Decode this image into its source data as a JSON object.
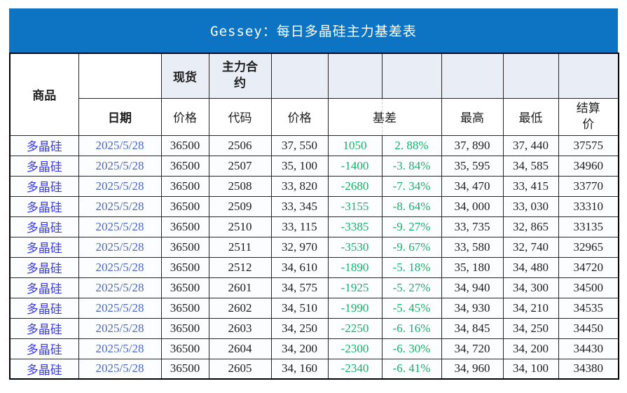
{
  "title": "Gessey：每日多晶硅主力基差表",
  "colors": {
    "title_bar_bg": "#0d74c4",
    "title_text": "#ffffff",
    "header_fill": "#e9edf6",
    "product_text": "#3a3aef",
    "date_text": "#4a68c2",
    "basis_text": "#17b169",
    "body_text": "#1d1d1d",
    "grid_border": "#262626"
  },
  "table": {
    "header": {
      "product": "商品",
      "date": "日期",
      "spot_group": "现货",
      "main_contract_group": "主力合约",
      "spot_price": "价格",
      "code": "代码",
      "price": "价格",
      "basis": "基差",
      "high": "最高",
      "low": "最低",
      "settle": "结算价"
    },
    "columns": [
      "product",
      "date",
      "spot_price",
      "code",
      "price",
      "basis",
      "basis_pct",
      "high",
      "low",
      "settle"
    ],
    "rows": [
      {
        "product": "多晶硅",
        "date": "2025/5/28",
        "spot_price": "36500",
        "code": "2506",
        "price": "37, 550",
        "basis": "1050",
        "basis_pct": "2. 88%",
        "high": "37, 890",
        "low": "37, 440",
        "settle": "37575"
      },
      {
        "product": "多晶硅",
        "date": "2025/5/28",
        "spot_price": "36500",
        "code": "2507",
        "price": "35, 100",
        "basis": "-1400",
        "basis_pct": "-3. 84%",
        "high": "35, 595",
        "low": "34, 585",
        "settle": "34960"
      },
      {
        "product": "多晶硅",
        "date": "2025/5/28",
        "spot_price": "36500",
        "code": "2508",
        "price": "33, 820",
        "basis": "-2680",
        "basis_pct": "-7. 34%",
        "high": "34, 470",
        "low": "33, 415",
        "settle": "33770"
      },
      {
        "product": "多晶硅",
        "date": "2025/5/28",
        "spot_price": "36500",
        "code": "2509",
        "price": "33, 345",
        "basis": "-3155",
        "basis_pct": "-8. 64%",
        "high": "34, 000",
        "low": "33, 030",
        "settle": "33310"
      },
      {
        "product": "多晶硅",
        "date": "2025/5/28",
        "spot_price": "36500",
        "code": "2510",
        "price": "33, 115",
        "basis": "-3385",
        "basis_pct": "-9. 27%",
        "high": "33, 735",
        "low": "32, 865",
        "settle": "33135"
      },
      {
        "product": "多晶硅",
        "date": "2025/5/28",
        "spot_price": "36500",
        "code": "2511",
        "price": "32, 970",
        "basis": "-3530",
        "basis_pct": "-9. 67%",
        "high": "33, 580",
        "low": "32, 740",
        "settle": "32965"
      },
      {
        "product": "多晶硅",
        "date": "2025/5/28",
        "spot_price": "36500",
        "code": "2512",
        "price": "34, 610",
        "basis": "-1890",
        "basis_pct": "-5. 18%",
        "high": "35, 180",
        "low": "34, 480",
        "settle": "34720"
      },
      {
        "product": "多晶硅",
        "date": "2025/5/28",
        "spot_price": "36500",
        "code": "2601",
        "price": "34, 575",
        "basis": "-1925",
        "basis_pct": "-5. 27%",
        "high": "34, 940",
        "low": "34, 300",
        "settle": "34500"
      },
      {
        "product": "多晶硅",
        "date": "2025/5/28",
        "spot_price": "36500",
        "code": "2602",
        "price": "34, 510",
        "basis": "-1990",
        "basis_pct": "-5. 45%",
        "high": "34, 930",
        "low": "34, 210",
        "settle": "34535"
      },
      {
        "product": "多晶硅",
        "date": "2025/5/28",
        "spot_price": "36500",
        "code": "2603",
        "price": "34, 250",
        "basis": "-2250",
        "basis_pct": "-6. 16%",
        "high": "34, 845",
        "low": "34, 250",
        "settle": "34450"
      },
      {
        "product": "多晶硅",
        "date": "2025/5/28",
        "spot_price": "36500",
        "code": "2604",
        "price": "34, 200",
        "basis": "-2300",
        "basis_pct": "-6. 30%",
        "high": "34, 720",
        "low": "34, 200",
        "settle": "34430"
      },
      {
        "product": "多晶硅",
        "date": "2025/5/28",
        "spot_price": "36500",
        "code": "2605",
        "price": "34, 160",
        "basis": "-2340",
        "basis_pct": "-6. 41%",
        "high": "34, 960",
        "low": "34, 100",
        "settle": "34380"
      }
    ]
  }
}
